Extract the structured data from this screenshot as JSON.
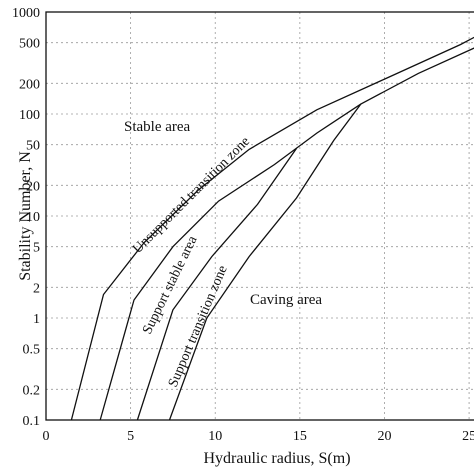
{
  "chart_data": {
    "type": "line",
    "title": "",
    "xlabel": "Hydraulic radius, S(m)",
    "ylabel": "Stability Number, N",
    "xlim": [
      0,
      26
    ],
    "ylim": [
      0.1,
      1000
    ],
    "y_scale": "log",
    "grid": true,
    "x_ticks": [
      "0",
      "5",
      "10",
      "15",
      "20",
      "25"
    ],
    "x_tick_values": [
      0,
      5,
      10,
      15,
      20,
      25
    ],
    "y_ticks": [
      "0.1",
      "0.2",
      "0.5",
      "1",
      "2",
      "5",
      "10",
      "20",
      "50",
      "100",
      "200",
      "500",
      "1000"
    ],
    "y_tick_values": [
      0.1,
      0.2,
      0.5,
      1,
      2,
      5,
      10,
      20,
      50,
      100,
      200,
      500,
      1000
    ],
    "series": [
      {
        "x": [
          1.5,
          3.4,
          5.8,
          9.0,
          12.0,
          16.0,
          20.0,
          24.5,
          26.0
        ],
        "y": [
          0.1,
          1.7,
          5.5,
          18,
          45,
          110,
          220,
          480,
          650
        ]
      },
      {
        "x": [
          3.2,
          5.2,
          7.5,
          10.2,
          13.5,
          16.0,
          18.6,
          22.0,
          26.0
        ],
        "y": [
          0.1,
          1.5,
          5.0,
          14,
          32,
          65,
          125,
          250,
          500
        ]
      },
      {
        "x": [
          5.4,
          7.5,
          9.8,
          12.5,
          14.8
        ],
        "y": [
          0.1,
          1.2,
          4.0,
          13,
          46
        ]
      },
      {
        "x": [
          7.3,
          9.5,
          12.0,
          14.8,
          17.0,
          18.6
        ],
        "y": [
          0.1,
          1.0,
          4.0,
          15,
          55,
          125
        ]
      }
    ],
    "annotations": [
      "Stable area",
      "Unsupported transition zone",
      "Support stable area",
      "Support transition zone",
      "Caving area"
    ]
  }
}
